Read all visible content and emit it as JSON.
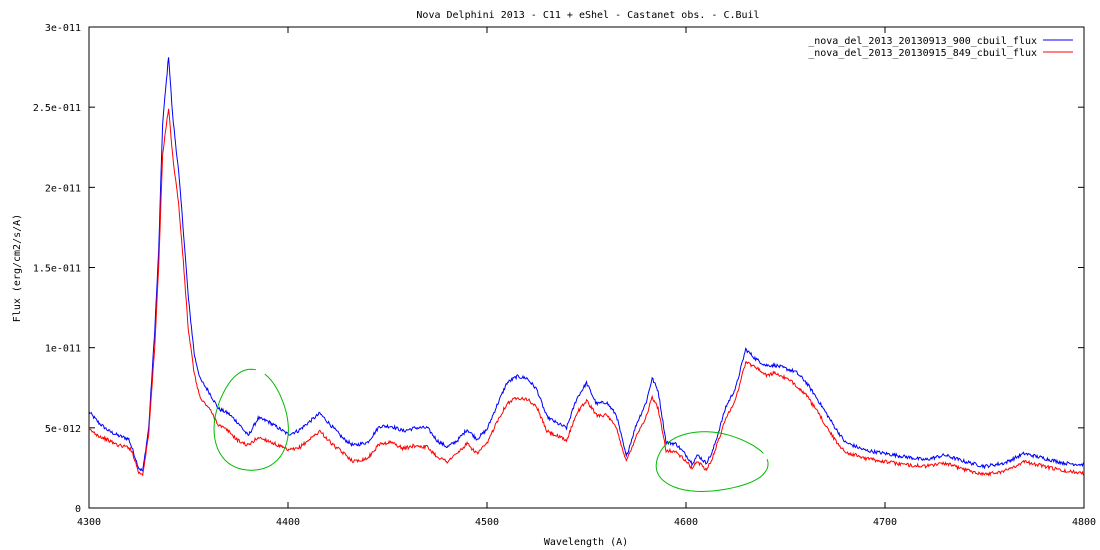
{
  "chart_data": {
    "type": "line",
    "title": "Nova Delphini 2013 - C11 + eShel - Castanet obs. - C.Buil",
    "xlabel": "Wavelength (A)",
    "ylabel": "Flux (erg/cm2/s/A)",
    "xlim": [
      4300,
      4800
    ],
    "ylim": [
      0,
      3e-11
    ],
    "x_ticks": [
      4300,
      4400,
      4500,
      4600,
      4700,
      4800
    ],
    "x_tick_labels": [
      "4300",
      "4400",
      "4500",
      "4600",
      "4700",
      "4800"
    ],
    "y_ticks": [
      0,
      5e-12,
      1e-11,
      1.5e-11,
      2e-11,
      2.5e-11,
      3e-11
    ],
    "y_tick_labels": [
      "0",
      "5e-012",
      "1e-011",
      "1.5e-011",
      "2e-011",
      "2.5e-011",
      "3e-011"
    ],
    "grid": false,
    "legend_position": "top-right",
    "series": [
      {
        "name": "_nova_del_2013_20130913_900_cbuil_flux",
        "color": "#0000ff",
        "x": [
          4300,
          4305,
          4310,
          4315,
          4320,
          4322,
          4325,
          4327,
          4330,
          4333,
          4335,
          4337,
          4340,
          4342,
          4345,
          4347,
          4350,
          4353,
          4356,
          4360,
          4365,
          4370,
          4375,
          4380,
          4385,
          4390,
          4395,
          4400,
          4405,
          4410,
          4416,
          4422,
          4428,
          4433,
          4440,
          4446,
          4452,
          4458,
          4464,
          4470,
          4475,
          4480,
          4485,
          4490,
          4495,
          4500,
          4505,
          4510,
          4515,
          4520,
          4525,
          4530,
          4535,
          4540,
          4545,
          4550,
          4555,
          4560,
          4565,
          4570,
          4575,
          4580,
          4583,
          4586,
          4590,
          4595,
          4600,
          4603,
          4606,
          4610,
          4613,
          4616,
          4620,
          4625,
          4630,
          4635,
          4640,
          4645,
          4650,
          4655,
          4660,
          4665,
          4670,
          4675,
          4680,
          4690,
          4700,
          4710,
          4720,
          4730,
          4740,
          4750,
          4760,
          4770,
          4780,
          4790,
          4800
        ],
        "y": [
          6e-12,
          5.3e-12,
          4.8e-12,
          4.5e-12,
          4.3e-12,
          3.6e-12,
          2.5e-12,
          2.3e-12,
          5e-12,
          1.1e-11,
          1.6e-11,
          2.4e-11,
          2.82e-11,
          2.45e-11,
          2.1e-11,
          1.8e-11,
          1.3e-11,
          9.5e-12,
          8e-12,
          7.3e-12,
          6.2e-12,
          5.9e-12,
          5.3e-12,
          4.5e-12,
          5.6e-12,
          5.4e-12,
          5e-12,
          4.6e-12,
          4.8e-12,
          5.3e-12,
          5.9e-12,
          5.1e-12,
          4.3e-12,
          3.9e-12,
          4.1e-12,
          5.1e-12,
          5.1e-12,
          4.8e-12,
          5e-12,
          5e-12,
          4.2e-12,
          3.8e-12,
          4.2e-12,
          4.9e-12,
          4.3e-12,
          4.9e-12,
          6.4e-12,
          7.8e-12,
          8.2e-12,
          8.1e-12,
          7.4e-12,
          5.7e-12,
          5.3e-12,
          5e-12,
          6.8e-12,
          7.8e-12,
          6.5e-12,
          6.6e-12,
          5.8e-12,
          3.2e-12,
          5.2e-12,
          6.6e-12,
          8.1e-12,
          7.3e-12,
          4.1e-12,
          4e-12,
          3.3e-12,
          2.8e-12,
          3.3e-12,
          2.8e-12,
          3.4e-12,
          4.6e-12,
          6.3e-12,
          7.5e-12,
          9.9e-12,
          9.3e-12,
          8.9e-12,
          8.9e-12,
          8.7e-12,
          8.5e-12,
          7.9e-12,
          7e-12,
          6e-12,
          5e-12,
          4.1e-12,
          3.6e-12,
          3.4e-12,
          3.2e-12,
          3e-12,
          3.3e-12,
          2.9e-12,
          2.6e-12,
          2.8e-12,
          3.4e-12,
          3.1e-12,
          2.8e-12,
          2.7e-12
        ]
      },
      {
        "name": "_nova_del_2013_20130915_849_cbuil_flux",
        "color": "#ff0000",
        "x": [
          4300,
          4305,
          4310,
          4315,
          4320,
          4322,
          4325,
          4327,
          4330,
          4333,
          4335,
          4337,
          4340,
          4342,
          4345,
          4347,
          4350,
          4353,
          4356,
          4360,
          4365,
          4370,
          4375,
          4380,
          4385,
          4390,
          4395,
          4400,
          4405,
          4410,
          4416,
          4422,
          4428,
          4433,
          4440,
          4446,
          4452,
          4458,
          4464,
          4470,
          4475,
          4480,
          4485,
          4490,
          4495,
          4500,
          4505,
          4510,
          4515,
          4520,
          4525,
          4530,
          4535,
          4540,
          4545,
          4550,
          4555,
          4560,
          4565,
          4570,
          4575,
          4580,
          4583,
          4586,
          4590,
          4595,
          4600,
          4603,
          4606,
          4610,
          4613,
          4616,
          4620,
          4625,
          4630,
          4635,
          4640,
          4645,
          4650,
          4655,
          4660,
          4665,
          4670,
          4675,
          4680,
          4690,
          4700,
          4710,
          4720,
          4730,
          4740,
          4750,
          4760,
          4770,
          4780,
          4790,
          4800
        ],
        "y": [
          4.9e-12,
          4.5e-12,
          4.2e-12,
          3.9e-12,
          3.8e-12,
          3.4e-12,
          2.2e-12,
          2.1e-12,
          4.6e-12,
          1e-11,
          1.5e-11,
          2.2e-11,
          2.5e-11,
          2.2e-11,
          1.9e-11,
          1.6e-11,
          1.1e-11,
          8.3e-12,
          6.8e-12,
          6.3e-12,
          5.2e-12,
          4.8e-12,
          4.2e-12,
          3.9e-12,
          4.4e-12,
          4.2e-12,
          3.9e-12,
          3.6e-12,
          3.7e-12,
          4.2e-12,
          4.8e-12,
          4e-12,
          3.4e-12,
          2.9e-12,
          3.1e-12,
          4e-12,
          4.1e-12,
          3.7e-12,
          3.9e-12,
          3.8e-12,
          3.2e-12,
          2.9e-12,
          3.4e-12,
          4e-12,
          3.4e-12,
          4e-12,
          5.4e-12,
          6.5e-12,
          6.9e-12,
          6.8e-12,
          6.3e-12,
          4.8e-12,
          4.5e-12,
          4.2e-12,
          5.9e-12,
          6.7e-12,
          5.8e-12,
          5.8e-12,
          5e-12,
          2.9e-12,
          4.5e-12,
          5.7e-12,
          6.9e-12,
          6.2e-12,
          3.6e-12,
          3.5e-12,
          2.9e-12,
          2.5e-12,
          2.9e-12,
          2.4e-12,
          3e-12,
          4.1e-12,
          5.6e-12,
          6.8e-12,
          9.1e-12,
          8.8e-12,
          8.3e-12,
          8.4e-12,
          8.1e-12,
          7.7e-12,
          7.1e-12,
          6.2e-12,
          5.2e-12,
          4.2e-12,
          3.5e-12,
          3.1e-12,
          2.9e-12,
          2.7e-12,
          2.6e-12,
          2.8e-12,
          2.4e-12,
          2.1e-12,
          2.3e-12,
          2.9e-12,
          2.6e-12,
          2.3e-12,
          2.2e-12
        ]
      }
    ],
    "annotations": [
      {
        "type": "hand-drawn-circle",
        "color": "#00bb00",
        "x_range": [
          4363,
          4400
        ],
        "y_range": [
          2.2e-12,
          8.5e-12
        ]
      },
      {
        "type": "hand-drawn-ellipse",
        "color": "#00bb00",
        "x_range": [
          4584,
          4640
        ],
        "y_range": [
          1e-12,
          4.7e-12
        ]
      }
    ]
  }
}
